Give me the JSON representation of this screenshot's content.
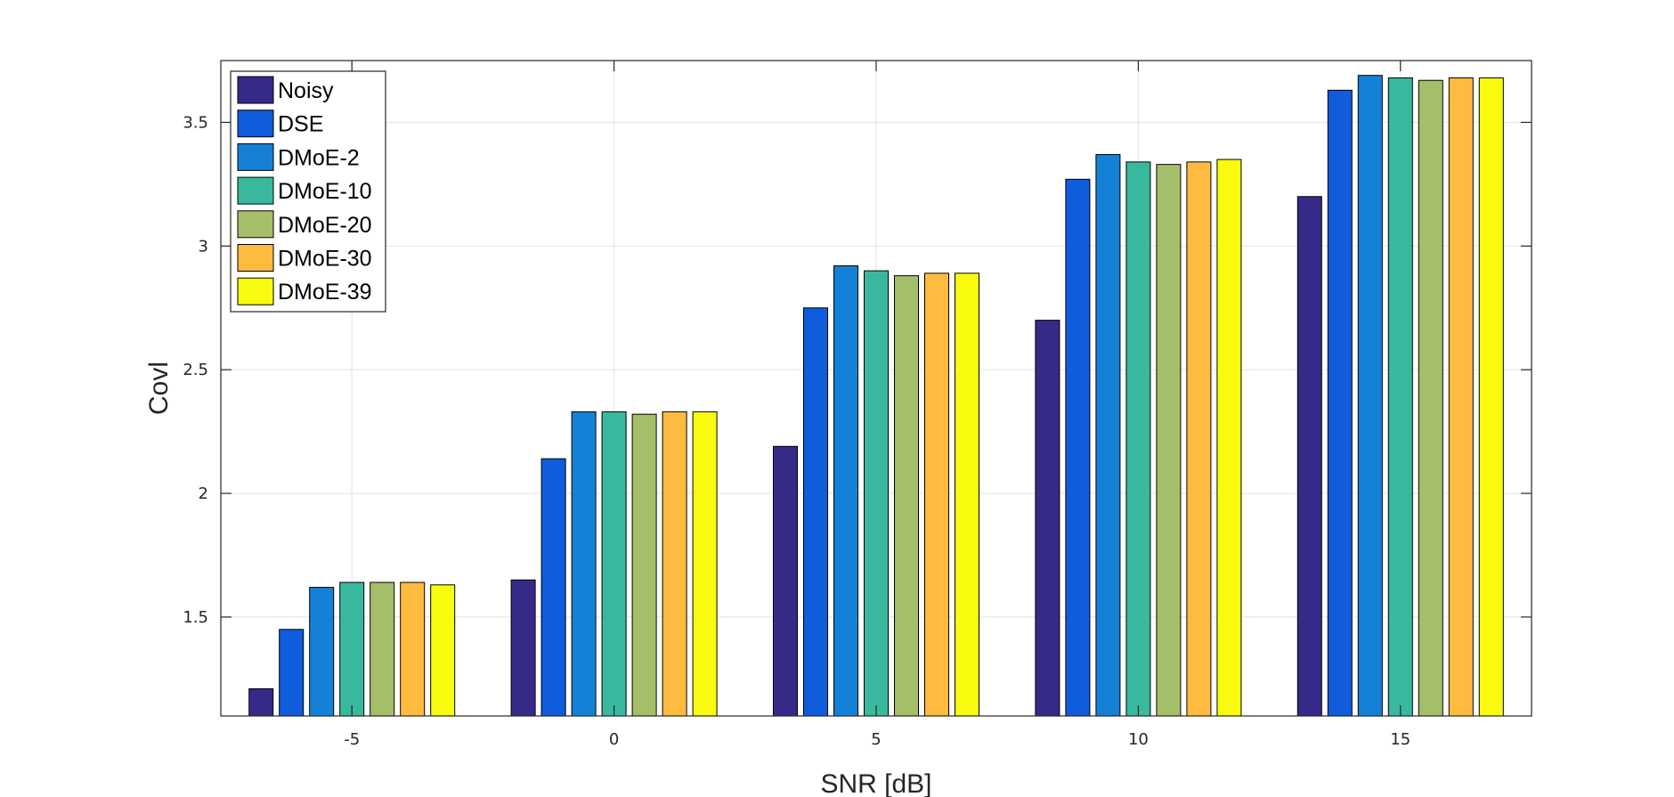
{
  "chart_data": {
    "type": "bar",
    "xlabel": "SNR [dB]",
    "ylabel": "Covl",
    "categories": [
      "-5",
      "0",
      "5",
      "10",
      "15"
    ],
    "ylim": [
      1.1,
      3.75
    ],
    "yticks": [
      "1.5",
      "2",
      "2.5",
      "3",
      "3.5"
    ],
    "grid": true,
    "legend_position": "top-left",
    "series": [
      {
        "name": "Noisy",
        "color": "#352A87",
        "values": [
          1.21,
          1.65,
          2.19,
          2.7,
          3.2
        ]
      },
      {
        "name": "DSE",
        "color": "#0F5CDD",
        "values": [
          1.45,
          2.14,
          2.75,
          3.27,
          3.63
        ]
      },
      {
        "name": "DMoE-2",
        "color": "#1481D6",
        "values": [
          1.62,
          2.33,
          2.92,
          3.37,
          3.69
        ]
      },
      {
        "name": "DMoE-10",
        "color": "#38B99E",
        "values": [
          1.64,
          2.33,
          2.9,
          3.34,
          3.68
        ]
      },
      {
        "name": "DMoE-20",
        "color": "#A5BE6A",
        "values": [
          1.64,
          2.32,
          2.88,
          3.33,
          3.67
        ]
      },
      {
        "name": "DMoE-30",
        "color": "#FFBB3F",
        "values": [
          1.64,
          2.33,
          2.89,
          3.34,
          3.68
        ]
      },
      {
        "name": "DMoE-39",
        "color": "#F9FB0E",
        "values": [
          1.63,
          2.33,
          2.89,
          3.35,
          3.68
        ]
      }
    ]
  }
}
